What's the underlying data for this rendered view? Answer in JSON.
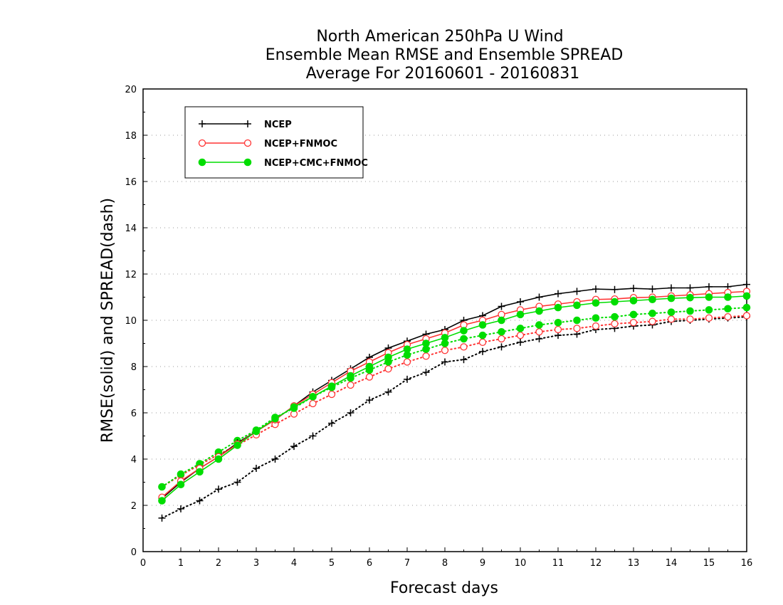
{
  "chart_data": {
    "type": "line",
    "title": [
      "North American 250hPa U Wind",
      "Ensemble Mean RMSE and Ensemble SPREAD",
      "Average For 20160601 - 20160831"
    ],
    "xlabel": "Forecast days",
    "ylabel": "RMSE(solid) and SPREAD(dash)",
    "xlim": [
      0,
      16
    ],
    "ylim": [
      0,
      20
    ],
    "xticks": [
      0,
      1,
      2,
      3,
      4,
      5,
      6,
      7,
      8,
      9,
      10,
      11,
      12,
      13,
      14,
      15,
      16
    ],
    "yticks": [
      0,
      2,
      4,
      6,
      8,
      10,
      12,
      14,
      16,
      18,
      20
    ],
    "grid": "horizontal dotted",
    "legend_position": "top-left",
    "x": [
      0.5,
      1,
      1.5,
      2,
      2.5,
      3,
      3.5,
      4,
      4.5,
      5,
      5.5,
      6,
      6.5,
      7,
      7.5,
      8,
      8.5,
      9,
      9.5,
      10,
      10.5,
      11,
      11.5,
      12,
      12.5,
      13,
      13.5,
      14,
      14.5,
      15,
      15.5,
      16
    ],
    "series": [
      {
        "name": "NCEP",
        "metric": "RMSE",
        "style": "solid",
        "marker": "plus",
        "color": "#000000",
        "values": [
          2.3,
          3.0,
          3.6,
          4.1,
          4.7,
          5.2,
          5.7,
          6.3,
          6.9,
          7.4,
          7.9,
          8.4,
          8.8,
          9.1,
          9.4,
          9.6,
          10.0,
          10.2,
          10.6,
          10.8,
          11.0,
          11.15,
          11.25,
          11.35,
          11.33,
          11.38,
          11.35,
          11.4,
          11.4,
          11.45,
          11.45,
          11.55
        ]
      },
      {
        "name": "NCEP+FNMOC",
        "metric": "RMSE",
        "style": "solid",
        "marker": "open-circle",
        "color": "#ff3333",
        "values": [
          2.35,
          3.05,
          3.6,
          4.1,
          4.65,
          5.2,
          5.7,
          6.3,
          6.8,
          7.3,
          7.8,
          8.2,
          8.6,
          8.95,
          9.2,
          9.45,
          9.8,
          10.0,
          10.25,
          10.45,
          10.6,
          10.7,
          10.8,
          10.9,
          10.92,
          10.98,
          11.0,
          11.05,
          11.1,
          11.15,
          11.2,
          11.25
        ]
      },
      {
        "name": "NCEP+CMC+FNMOC",
        "metric": "RMSE",
        "style": "solid",
        "marker": "filled-circle",
        "color": "#00dd00",
        "values": [
          2.2,
          2.9,
          3.45,
          4.0,
          4.6,
          5.2,
          5.75,
          6.25,
          6.7,
          7.15,
          7.6,
          8.0,
          8.4,
          8.75,
          9.0,
          9.25,
          9.55,
          9.8,
          10.0,
          10.25,
          10.4,
          10.55,
          10.65,
          10.75,
          10.8,
          10.85,
          10.9,
          10.95,
          10.98,
          11.0,
          11.0,
          11.05
        ]
      },
      {
        "name": "NCEP",
        "metric": "SPREAD",
        "style": "dotted",
        "marker": "plus",
        "color": "#000000",
        "values": [
          1.45,
          1.85,
          2.2,
          2.7,
          3.0,
          3.6,
          4.0,
          4.55,
          5.0,
          5.55,
          6.0,
          6.55,
          6.9,
          7.45,
          7.75,
          8.2,
          8.3,
          8.65,
          8.85,
          9.05,
          9.2,
          9.35,
          9.4,
          9.6,
          9.65,
          9.75,
          9.8,
          9.95,
          10.0,
          10.05,
          10.1,
          10.15
        ]
      },
      {
        "name": "NCEP+FNMOC",
        "metric": "SPREAD",
        "style": "dotted",
        "marker": "open-circle",
        "color": "#ff3333",
        "values": [
          2.8,
          3.3,
          3.75,
          4.2,
          4.6,
          5.05,
          5.5,
          5.95,
          6.4,
          6.8,
          7.2,
          7.55,
          7.9,
          8.2,
          8.45,
          8.7,
          8.85,
          9.05,
          9.2,
          9.35,
          9.5,
          9.6,
          9.65,
          9.75,
          9.85,
          9.9,
          9.95,
          10.05,
          10.05,
          10.1,
          10.15,
          10.2
        ]
      },
      {
        "name": "NCEP+CMC+FNMOC",
        "metric": "SPREAD",
        "style": "dotted",
        "marker": "filled-circle",
        "color": "#00dd00",
        "values": [
          2.8,
          3.35,
          3.8,
          4.3,
          4.8,
          5.25,
          5.8,
          6.2,
          6.7,
          7.1,
          7.5,
          7.85,
          8.2,
          8.5,
          8.75,
          9.0,
          9.2,
          9.35,
          9.5,
          9.65,
          9.8,
          9.9,
          10.0,
          10.1,
          10.15,
          10.25,
          10.3,
          10.35,
          10.4,
          10.45,
          10.5,
          10.55
        ]
      }
    ]
  }
}
